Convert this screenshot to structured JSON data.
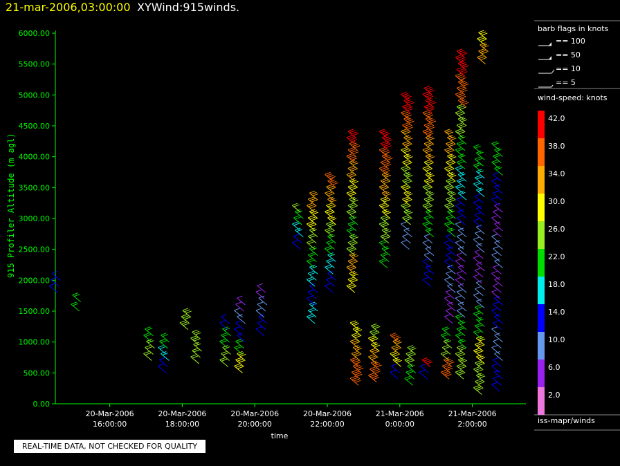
{
  "title": {
    "datetime": "21-mar-2006,03:00:00",
    "product": "XYWind:915winds."
  },
  "quality_note": "REAL-TIME DATA, NOT CHECKED FOR QUALITY",
  "legend": {
    "barb_title": "barb flags in knots",
    "barbs": [
      "== 100",
      "== 50",
      "== 10",
      "== 5"
    ],
    "speed_title": "wind-speed: knots",
    "source": "iss-mapr/winds"
  },
  "colors": {
    "background": "#000000",
    "axis": "#00ff00",
    "title_date": "#ffff00",
    "speed_scale": [
      "#ee77dd",
      "#9922ee",
      "#6699ee",
      "#0000ff",
      "#00eeee",
      "#00dd00",
      "#99ee22",
      "#ffff00",
      "#ffaa00",
      "#ff6600",
      "#ff0000"
    ]
  },
  "chart_data": {
    "type": "scatter",
    "title": "XYWind:915winds.",
    "xlabel": "time",
    "ylabel": "915 Profiler Altitude (m agl)",
    "ylim": [
      0,
      6000
    ],
    "xlim_hours": [
      14.5,
      27.0
    ],
    "yticks": [
      "0.00",
      "500.00",
      "1000.00",
      "1500.00",
      "2000.00",
      "2500.00",
      "3000.00",
      "3500.00",
      "4000.00",
      "4500.00",
      "5000.00",
      "5500.00",
      "6000.00"
    ],
    "xticks": [
      {
        "hour": 16,
        "date": "20-Mar-2006",
        "time": "16:00:00"
      },
      {
        "hour": 18,
        "date": "20-Mar-2006",
        "time": "18:00:00"
      },
      {
        "hour": 20,
        "date": "20-Mar-2006",
        "time": "20:00:00"
      },
      {
        "hour": 22,
        "date": "20-Mar-2006",
        "time": "22:00:00"
      },
      {
        "hour": 24,
        "date": "21-Mar-2006",
        "time": "0:00:00"
      },
      {
        "hour": 26,
        "date": "21-Mar-2006",
        "time": "2:00:00"
      }
    ],
    "colorbar": {
      "label": "wind-speed: knots",
      "ticks": [
        "42.0",
        "38.0",
        "34.0",
        "30.0",
        "26.0",
        "22.0",
        "18.0",
        "14.0",
        "10.0",
        "6.0",
        "2.0"
      ]
    },
    "profiles": [
      {
        "t": 14.6,
        "alt": [
          1800,
          1900,
          2000
        ],
        "spd": [
          13
        ]
      },
      {
        "t": 15.2,
        "alt": [
          1500,
          1650
        ],
        "spd": [
          22
        ]
      },
      {
        "t": 17.2,
        "alt": [
          700,
          800,
          900,
          1000,
          1100
        ],
        "spd": [
          24,
          22
        ]
      },
      {
        "t": 17.6,
        "alt": [
          500,
          600,
          700,
          800,
          900,
          1000
        ],
        "spd": [
          14,
          17,
          20
        ]
      },
      {
        "t": 18.2,
        "alt": [
          1200,
          1300,
          1400
        ],
        "spd": [
          27
        ]
      },
      {
        "t": 18.5,
        "alt": [
          650,
          750,
          850,
          950,
          1050
        ],
        "spd": [
          24,
          27
        ]
      },
      {
        "t": 19.3,
        "alt": [
          600,
          700,
          800,
          900,
          1000,
          1100,
          1200,
          1300
        ],
        "spd": [
          24,
          20,
          14
        ]
      },
      {
        "t": 19.7,
        "alt": [
          500,
          600,
          700,
          800,
          900,
          1000,
          1100,
          1200,
          1300,
          1400,
          1500,
          1600
        ],
        "spd": [
          28,
          20,
          14,
          10,
          7
        ]
      },
      {
        "t": 20.3,
        "alt": [
          1100,
          1200,
          1300,
          1400,
          1500,
          1600,
          1700,
          1800
        ],
        "spd": [
          14,
          10,
          6
        ]
      },
      {
        "t": 21.3,
        "alt": [
          2500,
          2600,
          2700,
          2800,
          2900,
          3000,
          3100
        ],
        "spd": [
          14,
          16,
          20,
          24
        ]
      },
      {
        "t": 21.7,
        "alt": [
          1300,
          1400,
          1500,
          1600,
          1700,
          1800,
          1900,
          2000,
          2100,
          2200,
          2300,
          2400,
          2500,
          2600,
          2700,
          2800,
          2900,
          3000,
          3100,
          3200,
          3300
        ],
        "spd": [
          16,
          14,
          18,
          22,
          24,
          28,
          32
        ]
      },
      {
        "t": 22.2,
        "alt": [
          1800,
          1900,
          2000,
          2100,
          2200,
          2300,
          2400,
          2500,
          2600,
          2700,
          2800,
          2900,
          3000,
          3100,
          3200,
          3300,
          3400,
          3500,
          3600
        ],
        "spd": [
          14,
          18,
          22,
          26,
          30,
          34,
          38
        ]
      },
      {
        "t": 22.8,
        "alt": [
          1800,
          1900,
          2000,
          2100,
          2200,
          2300,
          2400,
          2500,
          2600,
          2700,
          2800,
          2900,
          3000,
          3100,
          3200,
          3300,
          3400,
          3500,
          3600,
          3700,
          3800,
          3900,
          4000,
          4100,
          4200,
          4300
        ],
        "spd": [
          30,
          34,
          26,
          22,
          26,
          30,
          34,
          38,
          42
        ]
      },
      {
        "t": 22.9,
        "alt": [
          300,
          400,
          500,
          600,
          700,
          800,
          900,
          1000,
          1100,
          1200
        ],
        "spd": [
          38,
          34,
          30
        ]
      },
      {
        "t": 23.4,
        "alt": [
          350,
          450,
          550,
          650,
          750,
          850,
          950,
          1050,
          1150
        ],
        "spd": [
          38,
          34,
          30,
          26
        ]
      },
      {
        "t": 23.7,
        "alt": [
          2200,
          2300,
          2400,
          2500,
          2600,
          2700,
          2800,
          2900,
          3000,
          3100,
          3200,
          3300,
          3400,
          3500,
          3600,
          3700,
          3800,
          3900,
          4000,
          4100,
          4200,
          4300
        ],
        "spd": [
          22,
          26,
          30,
          34,
          38,
          42
        ]
      },
      {
        "t": 24.0,
        "alt": [
          400,
          500,
          600,
          700,
          800,
          900,
          1000
        ],
        "spd": [
          14,
          30,
          34,
          38
        ]
      },
      {
        "t": 24.3,
        "alt": [
          2500,
          2600,
          2700,
          2800,
          2900,
          3000,
          3100,
          3200,
          3300,
          3400,
          3500,
          3600,
          3700,
          3800,
          3900,
          4000,
          4100,
          4200,
          4300,
          4400,
          4500,
          4600,
          4700,
          4800,
          4900
        ],
        "spd": [
          10,
          26,
          30,
          26,
          30,
          34,
          38,
          42
        ]
      },
      {
        "t": 24.4,
        "alt": [
          300,
          400,
          500,
          600,
          700,
          800
        ],
        "spd": [
          20,
          26
        ]
      },
      {
        "t": 24.9,
        "alt": [
          1900,
          2000,
          2100,
          2200,
          2300,
          2400,
          2500,
          2600,
          2700,
          2800,
          2900,
          3000,
          3100,
          3200,
          3300,
          3400,
          3500,
          3600,
          3700,
          3800,
          3900,
          4000,
          4100,
          4200,
          4300,
          4400,
          4500,
          4600,
          4700,
          4800,
          4900,
          5000
        ],
        "spd": [
          14,
          10,
          22,
          26,
          30,
          34,
          38,
          42
        ]
      },
      {
        "t": 24.8,
        "alt": [
          400,
          500,
          600
        ],
        "spd": [
          14,
          40
        ]
      },
      {
        "t": 25.5,
        "alt": [
          1300,
          1400,
          1500,
          1600,
          1700,
          1800,
          1900,
          2000,
          2100,
          2200,
          2300,
          2400,
          2500,
          2600,
          2700,
          2800,
          2900,
          3000,
          3100,
          3200,
          3300,
          3400,
          3500,
          3600,
          3700,
          3800,
          3900,
          4000,
          4100,
          4200,
          4300
        ],
        "spd": [
          6,
          10,
          14,
          22,
          26,
          30,
          34
        ]
      },
      {
        "t": 25.4,
        "alt": [
          400,
          500,
          600,
          700,
          800,
          900,
          1000,
          1100
        ],
        "spd": [
          38,
          24,
          20
        ]
      },
      {
        "t": 25.8,
        "alt": [
          400,
          500,
          600,
          700,
          800,
          900,
          1000,
          1100,
          1200,
          1300,
          1400,
          1500,
          1600,
          1700,
          1800,
          1900,
          2000,
          2100,
          2200,
          2300,
          2400,
          2500,
          2600,
          2700,
          2800,
          2900,
          3000,
          3100,
          3200,
          3300,
          3400,
          3500,
          3600,
          3700,
          3800,
          3900,
          4000,
          4100,
          4200,
          4300,
          4400,
          4500,
          4600,
          4700,
          4800,
          4900,
          5000,
          5100,
          5200,
          5300,
          5400,
          5500,
          5600
        ],
        "spd": [
          26,
          22,
          10,
          6,
          10,
          14,
          18,
          22,
          26,
          38,
          42
        ]
      },
      {
        "t": 26.3,
        "alt": [
          150,
          250,
          350,
          450,
          550,
          650,
          750,
          850,
          950,
          1050,
          1150,
          1250,
          1350,
          1450,
          1550,
          1650,
          1750,
          1850,
          1950,
          2050,
          2150,
          2250,
          2350,
          2450,
          2550,
          2650,
          2750,
          2850,
          2950,
          3050,
          3150,
          3250,
          3350,
          3450,
          3550,
          3650,
          3750,
          3850,
          3950,
          4050
        ],
        "spd": [
          26,
          30,
          22,
          10,
          6,
          10,
          14,
          18,
          22
        ]
      },
      {
        "t": 26.4,
        "alt": [
          5500,
          5600,
          5700,
          5800,
          5900
        ],
        "spd": [
          34,
          30
        ]
      },
      {
        "t": 26.8,
        "alt": [
          200,
          300,
          400,
          500,
          600,
          700,
          800,
          900,
          1000,
          1100,
          1200,
          1300,
          1400,
          1500,
          1600,
          1700,
          1800,
          1900,
          2000,
          2100,
          2200,
          2300,
          2400,
          2500,
          2600,
          2700,
          2800,
          2900,
          3000,
          3100,
          3200,
          3300,
          3400,
          3500,
          3600,
          3700,
          3800,
          3900,
          4000,
          4100
        ],
        "spd": [
          14,
          10,
          14,
          6,
          10,
          6,
          14,
          22
        ]
      }
    ]
  }
}
